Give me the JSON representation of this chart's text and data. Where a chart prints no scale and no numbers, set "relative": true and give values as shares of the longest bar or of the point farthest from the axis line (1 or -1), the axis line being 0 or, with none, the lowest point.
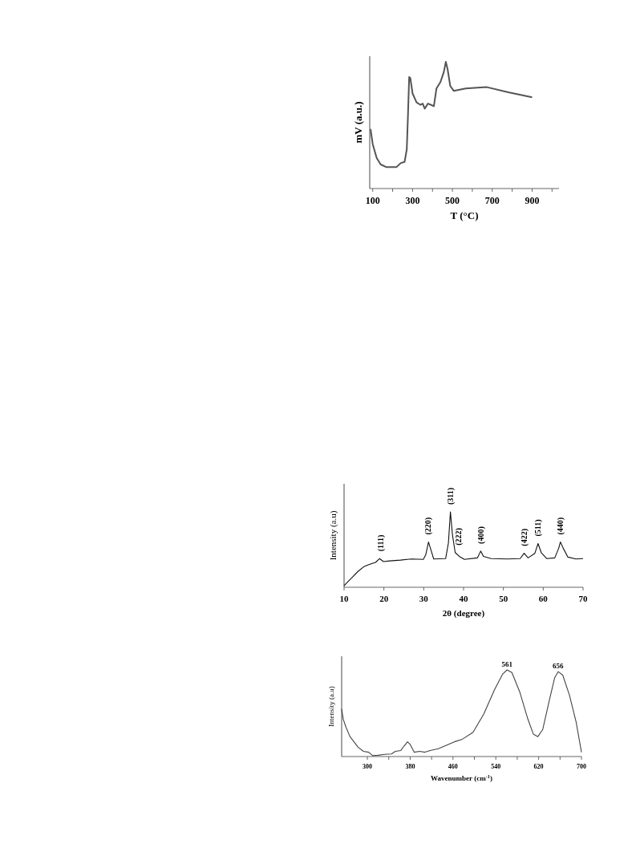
{
  "chart_data": [
    {
      "type": "line",
      "xlabel": "T (°C)",
      "ylabel": "mV (a.u.)",
      "relative": true,
      "xlim": [
        85,
        1035
      ],
      "xticks": [
        100,
        {
          "value": 200,
          "label": null
        },
        300,
        {
          "value": 400,
          "label": null
        },
        500,
        {
          "value": 600,
          "label": null
        },
        700,
        {
          "value": 800,
          "label": null
        },
        900,
        {
          "value": 1000,
          "label": null
        }
      ],
      "marker": "none",
      "line_style": "solid",
      "series": [
        {
          "color": "#555555",
          "x": [
            89,
            100,
            120,
            140,
            167,
            220,
            240,
            260,
            271,
            277,
            283,
            289,
            300,
            320,
            340,
            351,
            361,
            377,
            393,
            407,
            420,
            440,
            457,
            467,
            476,
            489,
            507,
            567,
            673,
            780,
            900
          ],
          "values": [
            0.47,
            0.35,
            0.24,
            0.19,
            0.17,
            0.17,
            0.2,
            0.21,
            0.31,
            0.58,
            0.88,
            0.87,
            0.75,
            0.68,
            0.66,
            0.67,
            0.63,
            0.67,
            0.66,
            0.65,
            0.79,
            0.84,
            0.92,
            1.0,
            0.94,
            0.81,
            0.77,
            0.79,
            0.8,
            0.76,
            0.72
          ]
        }
      ]
    },
    {
      "type": "line",
      "xlabel": "2θ (degree)",
      "ylabel": "Intensity (a.u)",
      "relative": true,
      "xlim": [
        10,
        70
      ],
      "xticks": [
        10,
        20,
        30,
        40,
        50,
        60,
        70
      ],
      "marker": "none",
      "line_style": "solid",
      "annotations": [
        {
          "text": "(111)",
          "x": 19.2,
          "y": 0.38
        },
        {
          "text": "(220)",
          "x": 31.2,
          "y": 0.6
        },
        {
          "text": "(311)",
          "x": 36.7,
          "y": 1.0
        },
        {
          "text": "(222)",
          "x": 38.8,
          "y": 0.46
        },
        {
          "text": "(400)",
          "x": 44.4,
          "y": 0.48
        },
        {
          "text": "(422)",
          "x": 55.3,
          "y": 0.45
        },
        {
          "text": "(511)",
          "x": 58.7,
          "y": 0.58
        },
        {
          "text": "(440)",
          "x": 64.3,
          "y": 0.6
        }
      ],
      "series": [
        {
          "color": "#111111",
          "x": [
            10,
            10.9,
            12.2,
            13.5,
            14.9,
            16.2,
            17.9,
            18.9,
            19.9,
            21.5,
            24.2,
            26.9,
            29.9,
            30.5,
            31.2,
            31.9,
            32.5,
            35.5,
            36.2,
            36.7,
            37.2,
            37.9,
            38.9,
            40.2,
            43.5,
            44.3,
            45,
            46.9,
            50.9,
            54.2,
            55.2,
            56.2,
            57.9,
            58.7,
            59.5,
            60.9,
            62.9,
            63.9,
            64.3,
            65,
            66.2,
            68.2,
            70
          ],
          "values": [
            0.02,
            0.07,
            0.14,
            0.21,
            0.27,
            0.3,
            0.33,
            0.38,
            0.34,
            0.35,
            0.36,
            0.375,
            0.37,
            0.43,
            0.6,
            0.48,
            0.375,
            0.38,
            0.59,
            1.0,
            0.7,
            0.46,
            0.41,
            0.37,
            0.39,
            0.48,
            0.41,
            0.38,
            0.375,
            0.38,
            0.45,
            0.39,
            0.45,
            0.58,
            0.46,
            0.38,
            0.39,
            0.52,
            0.6,
            0.52,
            0.4,
            0.375,
            0.38
          ]
        }
      ]
    },
    {
      "type": "line",
      "xlabel": "Wavenumber (cm$^{-1}$)",
      "ylabel": "Intensity (a.u)",
      "relative": true,
      "xlim": [
        252,
        700
      ],
      "xticks": [
        300,
        {
          "value": 340,
          "label": null
        },
        380,
        {
          "value": 420,
          "label": null
        },
        460,
        {
          "value": 500,
          "label": null
        },
        540,
        {
          "value": 580,
          "label": null
        },
        620,
        {
          "value": 660,
          "label": null
        },
        700
      ],
      "marker": "none",
      "line_style": "solid",
      "annotations": [
        {
          "text": "561",
          "x": 561,
          "y": 1.0
        },
        {
          "text": "656",
          "x": 656,
          "y": 0.98
        }
      ],
      "series": [
        {
          "color": "#444444",
          "x": [
            252,
            255,
            260,
            267.5,
            275,
            282.5,
            292.5,
            302.5,
            310,
            320,
            332.5,
            345,
            352.5,
            362.5,
            368.5,
            375,
            380,
            387.5,
            397.5,
            407.5,
            417.5,
            432.5,
            447.5,
            462.5,
            477.5,
            497.5,
            517.5,
            537.5,
            552.5,
            561,
            570,
            585,
            600,
            610,
            618.5,
            627.5,
            640,
            650,
            656.5,
            665,
            677.5,
            690,
            700
          ],
          "values": [
            0.55,
            0.43,
            0.34,
            0.23,
            0.17,
            0.11,
            0.06,
            0.05,
            0.01,
            0.015,
            0.025,
            0.03,
            0.06,
            0.07,
            0.12,
            0.17,
            0.14,
            0.05,
            0.06,
            0.05,
            0.07,
            0.09,
            0.13,
            0.17,
            0.2,
            0.28,
            0.49,
            0.77,
            0.95,
            1.0,
            0.97,
            0.74,
            0.43,
            0.26,
            0.23,
            0.31,
            0.65,
            0.91,
            0.98,
            0.94,
            0.71,
            0.4,
            0.05
          ]
        }
      ]
    }
  ]
}
